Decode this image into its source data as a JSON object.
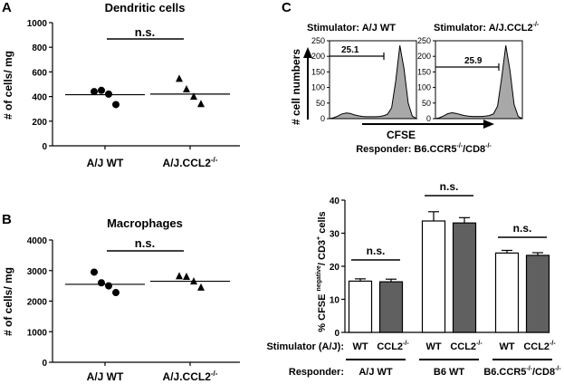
{
  "panels": {
    "a": {
      "letter": "A",
      "title": "Dendritic cells",
      "ylabel": "# of cells/ mg",
      "sig": "n.s.",
      "ticks": [
        "0",
        "200",
        "400",
        "600",
        "800",
        "1000"
      ],
      "groups": [
        {
          "base": "A/J WT",
          "sup": ""
        },
        {
          "base": "A/J.CCL2",
          "sup": "-/-"
        }
      ]
    },
    "b": {
      "letter": "B",
      "title": "Macrophages",
      "ylabel": "# of cells/ mg",
      "sig": "n.s.",
      "ticks": [
        "0",
        "1000",
        "2000",
        "3000",
        "4000"
      ],
      "groups": [
        {
          "base": "A/J WT",
          "sup": ""
        },
        {
          "base": "A/J.CCL2",
          "sup": "-/-"
        }
      ]
    },
    "c": {
      "letter": "C",
      "hist_left": {
        "title": "Stimulator: A/J WT",
        "ticks": [
          "0",
          "50",
          "100",
          "150",
          "200",
          "250"
        ],
        "gate": "25.1"
      },
      "hist_right": {
        "title_base": "Stimulator: A/J.CCL2",
        "title_sup": "-/-",
        "ticks": [
          "0",
          "50",
          "100",
          "150",
          "200",
          "250"
        ],
        "gate": "25.9"
      },
      "yaxis_label": "# cell numbers",
      "xaxis_label": "CFSE",
      "responder": {
        "prefix": "Responder: B6.CCR5",
        "sup1": "-/-",
        "mid": "/CD8",
        "sup2": "-/-"
      },
      "bar": {
        "ylabel_pre": "% CFSE ",
        "ylabel_sup1": "negative",
        "ylabel_mid": "/ CD3",
        "ylabel_sup2": "+",
        "ylabel_post": " cells",
        "ticks": [
          "0",
          "10",
          "20",
          "30",
          "40"
        ],
        "stim_label": "Stimulator (A/J):",
        "resp_label": "Responder:",
        "wt": "WT",
        "ccl2": "CCL2",
        "ccl2_sup": "-/-",
        "sig": "n.s.",
        "responders": [
          {
            "base": "A/J WT",
            "sup1": "",
            "mid": "",
            "sup2": ""
          },
          {
            "base": "B6 WT",
            "sup1": "",
            "mid": "",
            "sup2": ""
          },
          {
            "base": "B6.CCR5",
            "sup1": "-/-",
            "mid": "/CD8",
            "sup2": "-/-"
          }
        ]
      }
    }
  },
  "colors": {
    "white_bar": "#ffffff",
    "grey_bar": "#606060",
    "hist_fill": "#a8a8a8"
  },
  "chart_data": [
    {
      "type": "scatter",
      "title": "Dendritic cells",
      "ylabel": "# of cells/ mg",
      "ylim": [
        0,
        1000
      ],
      "categories": [
        "A/J WT",
        "A/J.CCL2-/-"
      ],
      "series": [
        {
          "name": "A/J WT",
          "marker": "circle",
          "values": [
            440,
            450,
            420,
            335
          ],
          "mean": 415
        },
        {
          "name": "A/J.CCL2-/-",
          "marker": "triangle",
          "values": [
            545,
            460,
            400,
            340
          ],
          "mean": 420
        }
      ],
      "annotation": "n.s."
    },
    {
      "type": "scatter",
      "title": "Macrophages",
      "ylabel": "# of cells/ mg",
      "ylim": [
        0,
        4000
      ],
      "categories": [
        "A/J WT",
        "A/J.CCL2-/-"
      ],
      "series": [
        {
          "name": "A/J WT",
          "marker": "circle",
          "values": [
            2950,
            2600,
            2500,
            2280
          ],
          "mean": 2550
        },
        {
          "name": "A/J.CCL2-/-",
          "marker": "triangle",
          "values": [
            2820,
            2800,
            2650,
            2450
          ],
          "mean": 2650
        }
      ],
      "annotation": "n.s."
    },
    {
      "type": "area",
      "title": "Stimulator: A/J WT",
      "ylabel": "# cell numbers",
      "xlabel": "CFSE",
      "ylim": [
        0,
        250
      ],
      "gate_value": 25.1,
      "profile": [
        0,
        3,
        8,
        15,
        18,
        17,
        12,
        9,
        7,
        6,
        6,
        6,
        7,
        9,
        14,
        35,
        120,
        235,
        160,
        50,
        8,
        0
      ]
    },
    {
      "type": "area",
      "title": "Stimulator: A/J.CCL2-/-",
      "ylabel": "# cell numbers",
      "xlabel": "CFSE",
      "ylim": [
        0,
        250
      ],
      "gate_value": 25.9,
      "profile": [
        0,
        3,
        9,
        16,
        19,
        17,
        13,
        10,
        8,
        7,
        7,
        7,
        8,
        10,
        15,
        40,
        130,
        235,
        155,
        45,
        7,
        0
      ]
    },
    {
      "type": "bar",
      "ylabel": "% CFSE negative/ CD3+ cells",
      "ylim": [
        0,
        40
      ],
      "categories": [
        "WT",
        "CCL2-/-",
        "WT",
        "CCL2-/-",
        "WT",
        "CCL2-/-"
      ],
      "responders": [
        "A/J WT",
        "A/J WT",
        "B6 WT",
        "B6 WT",
        "B6.CCR5-/-/CD8-/-",
        "B6.CCR5-/-/CD8-/-"
      ],
      "values": [
        15.5,
        15.3,
        33.7,
        33.1,
        24.0,
        23.3
      ],
      "errors": [
        0.7,
        0.8,
        2.8,
        1.6,
        0.8,
        0.8
      ],
      "colors": [
        "white",
        "grey",
        "white",
        "grey",
        "white",
        "grey"
      ],
      "annotations": [
        "n.s.",
        "n.s.",
        "n.s."
      ]
    }
  ]
}
